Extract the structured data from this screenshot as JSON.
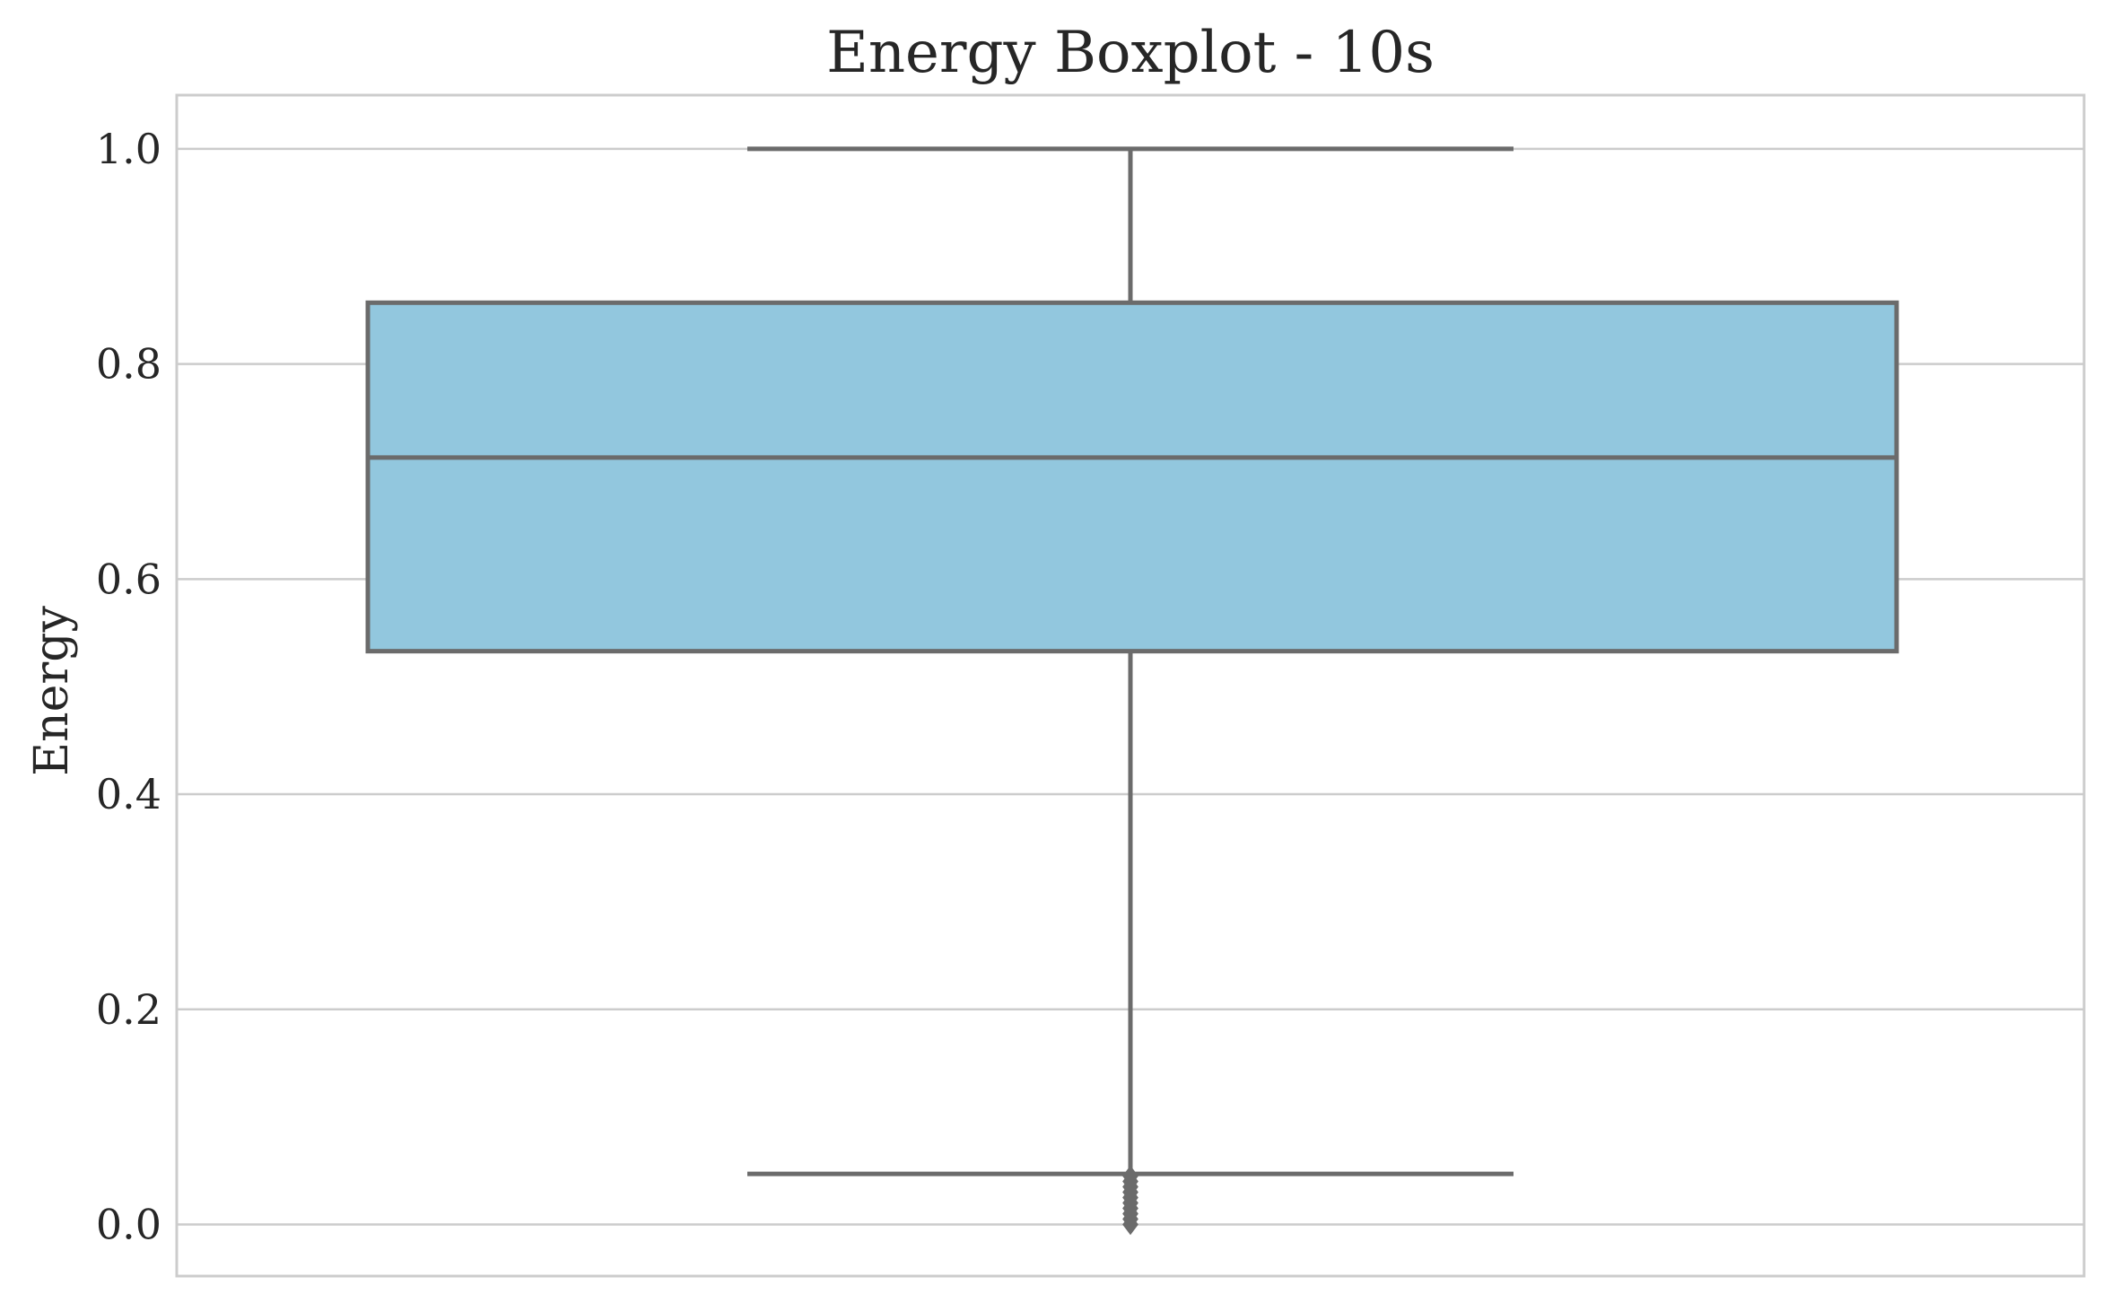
{
  "chart_data": {
    "type": "boxplot",
    "title": "Energy Boxplot - 10s",
    "xlabel": "",
    "ylabel": "Energy",
    "ylim": [
      -0.048,
      1.05
    ],
    "yticks": [
      0.0,
      0.2,
      0.4,
      0.6,
      0.8,
      1.0
    ],
    "ytick_labels": [
      "0.0",
      "0.2",
      "0.4",
      "0.6",
      "0.8",
      "1.0"
    ],
    "grid": true,
    "box": {
      "whisker_low": 0.047,
      "q1": 0.533,
      "median": 0.713,
      "q3": 0.857,
      "whisker_high": 1.0,
      "outliers": [
        0.0,
        0.005,
        0.01,
        0.015,
        0.02,
        0.025,
        0.03,
        0.035,
        0.04,
        0.045
      ]
    },
    "colors": {
      "box_fill": "#92c7de",
      "line": "#6b6b6b",
      "grid": "#cccccc",
      "frame": "#cccccc"
    }
  }
}
